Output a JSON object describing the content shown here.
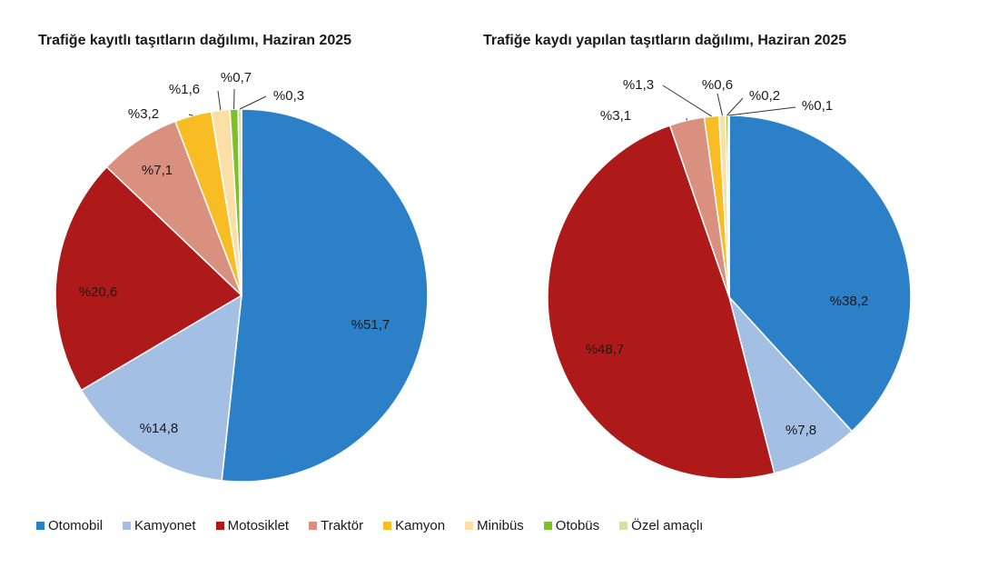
{
  "chart_data": [
    {
      "type": "pie",
      "title": "Trafiğe kayıtlı taşıtların dağılımı, Haziran 2025",
      "categories": [
        "Otomobil",
        "Kamyonet",
        "Motosiklet",
        "Traktör",
        "Kamyon",
        "Minibüs",
        "Otobüs",
        "Özel amaçlı"
      ],
      "values": [
        51.7,
        14.8,
        20.6,
        7.1,
        3.2,
        1.6,
        0.7,
        0.3
      ],
      "labels": [
        "%51,7",
        "%14,8",
        "%20,6",
        "%7,1",
        "%3,2",
        "%1,6",
        "%0,7",
        "%0,3"
      ]
    },
    {
      "type": "pie",
      "title": "Trafiğe kaydı yapılan taşıtların dağılımı, Haziran 2025",
      "categories": [
        "Otomobil",
        "Kamyonet",
        "Motosiklet",
        "Traktör",
        "Kamyon",
        "Minibüs",
        "Otobüs",
        "Özel amaçlı"
      ],
      "values": [
        38.2,
        7.8,
        48.7,
        3.1,
        1.3,
        0.6,
        0.2,
        0.1
      ],
      "labels": [
        "%38,2",
        "%7,8",
        "%48,7",
        "%3,1",
        "%1,3",
        "%0,6",
        "%0,2",
        "%0,1"
      ]
    }
  ],
  "legend": {
    "placement": "bottom",
    "items": [
      {
        "label": "Otomobil",
        "color": "#2b80c8"
      },
      {
        "label": "Kamyonet",
        "color": "#a4bfe4"
      },
      {
        "label": "Motosiklet",
        "color": "#ae1a1a"
      },
      {
        "label": "Traktör",
        "color": "#d9907e"
      },
      {
        "label": "Kamyon",
        "color": "#f8bc24"
      },
      {
        "label": "Minibüs",
        "color": "#fbdfa6"
      },
      {
        "label": "Otobüs",
        "color": "#7fbf2a"
      },
      {
        "label": "Özel amaçlı",
        "color": "#cfe3a8"
      }
    ]
  }
}
